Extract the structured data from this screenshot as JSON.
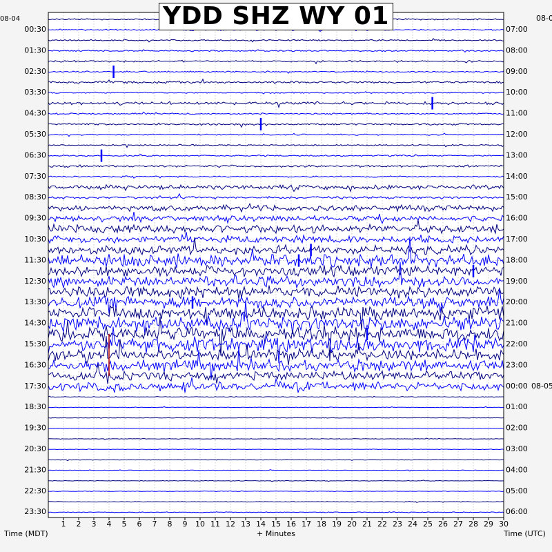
{
  "chart_data": {
    "type": "helicorder",
    "title": "YDD SHZ WY 01",
    "xlabel": "+ Minutes",
    "left_axis_label": "Time (MDT)",
    "right_axis_label": "Time (UTC)",
    "x_range": [
      0,
      30
    ],
    "x_ticks": [
      "1",
      "2",
      "3",
      "4",
      "5",
      "6",
      "7",
      "8",
      "9",
      "10",
      "11",
      "12",
      "13",
      "14",
      "15",
      "16",
      "17",
      "18",
      "19",
      "20",
      "21",
      "22",
      "23",
      "24",
      "25",
      "26",
      "27",
      "28",
      "29",
      "30"
    ],
    "left_date": "08-04",
    "right_date": "08-0",
    "right_date_2": "08-05",
    "left_times": [
      "00:30",
      "01:30",
      "02:30",
      "03:30",
      "04:30",
      "05:30",
      "06:30",
      "07:30",
      "08:30",
      "09:30",
      "10:30",
      "11:30",
      "12:30",
      "13:30",
      "14:30",
      "15:30",
      "16:30",
      "17:30",
      "18:30",
      "19:30",
      "20:30",
      "21:30",
      "22:30",
      "23:30"
    ],
    "right_times": [
      "07:00",
      "08:00",
      "09:00",
      "10:00",
      "11:00",
      "12:00",
      "13:00",
      "14:00",
      "15:00",
      "16:00",
      "17:00",
      "18:00",
      "19:00",
      "20:00",
      "21:00",
      "22:00",
      "23:00",
      "00:00",
      "01:00",
      "02:00",
      "03:00",
      "04:00",
      "05:00",
      "06:00"
    ],
    "trace_colors": [
      "#000080",
      "#0000ff"
    ],
    "event_color": "#b00000",
    "rows_per_hour": 2,
    "row_amplitude": [
      1,
      1,
      1,
      1,
      1.2,
      1,
      1.5,
      1,
      2,
      1,
      1.3,
      1,
      1,
      1,
      1.6,
      1,
      3,
      1.8,
      4,
      4,
      6,
      5,
      6,
      9,
      7,
      8,
      8,
      8,
      9,
      10,
      10,
      10,
      8,
      8,
      6,
      6,
      0.5,
      0.4,
      0.4,
      0.4,
      0.4,
      0.4,
      0.4,
      0.4,
      0.4,
      0.4,
      0.5,
      0.6,
      0.6,
      0.7,
      0.8,
      0.9,
      1,
      1.1,
      1.2,
      1.3,
      1.5,
      1.6,
      1.8,
      2,
      2.5,
      3,
      8,
      9,
      9,
      10,
      10,
      10,
      10,
      10,
      10,
      10,
      10,
      10,
      9,
      9,
      8,
      8,
      8,
      8,
      7,
      7,
      6,
      6,
      5,
      4,
      3,
      3,
      3,
      3,
      2,
      2
    ]
  }
}
